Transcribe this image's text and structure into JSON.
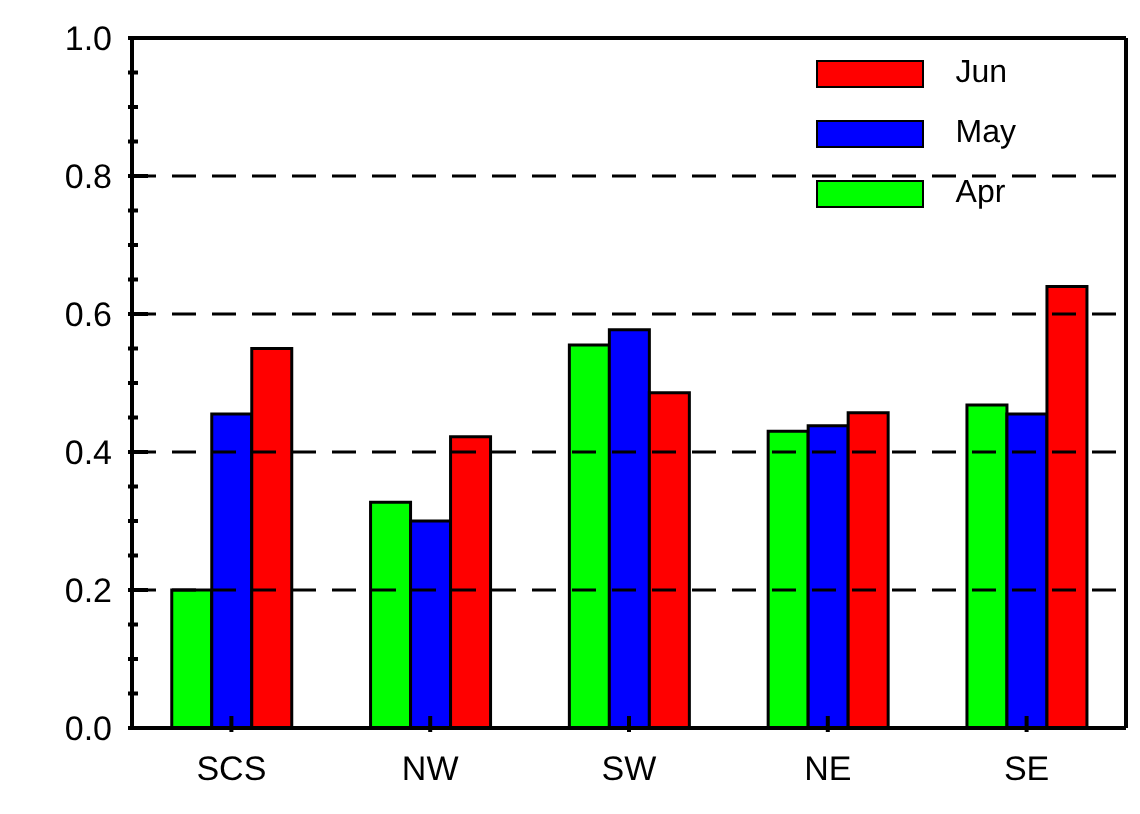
{
  "chart_data": {
    "type": "bar",
    "categories": [
      "SCS",
      "NW",
      "SW",
      "NE",
      "SE"
    ],
    "series": [
      {
        "name": "Apr",
        "color": "#00ff00",
        "values": [
          0.2,
          0.327,
          0.555,
          0.43,
          0.468
        ]
      },
      {
        "name": "May",
        "color": "#0000ff",
        "values": [
          0.455,
          0.3,
          0.577,
          0.438,
          0.455
        ]
      },
      {
        "name": "Jun",
        "color": "#ff0000",
        "values": [
          0.55,
          0.422,
          0.486,
          0.457,
          0.64
        ]
      }
    ],
    "ylim": [
      0,
      1
    ],
    "yticks": [
      {
        "value": 0,
        "label": "0.0"
      },
      {
        "value": 0.05,
        "label": null
      },
      {
        "value": 0.1,
        "label": null
      },
      {
        "value": 0.15,
        "label": null
      },
      {
        "value": 0.2,
        "label": "0.2"
      },
      {
        "value": 0.25,
        "label": null
      },
      {
        "value": 0.3,
        "label": null
      },
      {
        "value": 0.35,
        "label": null
      },
      {
        "value": 0.4,
        "label": "0.4"
      },
      {
        "value": 0.45,
        "label": null
      },
      {
        "value": 0.5,
        "label": null
      },
      {
        "value": 0.55,
        "label": null
      },
      {
        "value": 0.6,
        "label": "0.6"
      },
      {
        "value": 0.65,
        "label": null
      },
      {
        "value": 0.7,
        "label": null
      },
      {
        "value": 0.75,
        "label": null
      },
      {
        "value": 0.8,
        "label": "0.8"
      },
      {
        "value": 0.85,
        "label": null
      },
      {
        "value": 0.9,
        "label": null
      },
      {
        "value": 0.95,
        "label": null
      },
      {
        "value": 1,
        "label": "1.0"
      }
    ],
    "grid": "y",
    "legend": "top right"
  }
}
